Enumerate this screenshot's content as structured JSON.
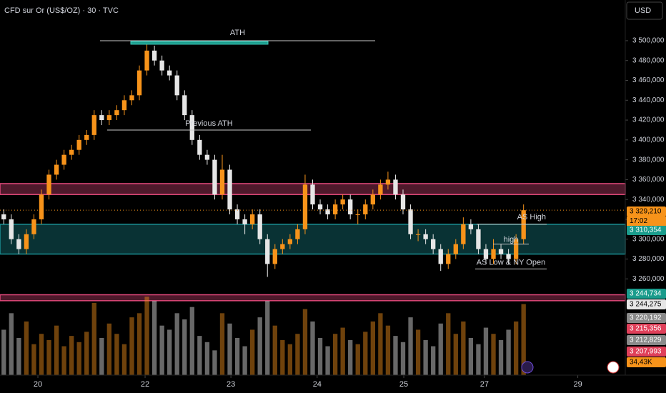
{
  "chart_data": {
    "type": "candlestick",
    "title": "CFD sur Or (US$/OZ) · 30 · TVC",
    "currency": "USD",
    "open": [
      3325,
      3320,
      3300,
      3290,
      3305,
      3320,
      3345,
      3365,
      3375,
      3385,
      3390,
      3400,
      3405,
      3425,
      3420,
      3425,
      3430,
      3440,
      3445,
      3470,
      3490,
      3480,
      3470,
      3465,
      3445,
      3425,
      3400,
      3385,
      3380,
      3345,
      3370,
      3330,
      3320,
      3315,
      3325,
      3300,
      3275,
      3290,
      3295,
      3300,
      3310,
      3355,
      3335,
      3330,
      3325,
      3335,
      3340,
      3325,
      3325,
      3335,
      3345,
      3355,
      3360,
      3345,
      3330,
      3305,
      3305,
      3300,
      3290,
      3275,
      3285,
      3295,
      3315,
      3310,
      3290,
      3280,
      3290,
      3285,
      3280,
      3300
    ],
    "high": [
      3330,
      3325,
      3305,
      3310,
      3325,
      3350,
      3370,
      3380,
      3390,
      3395,
      3405,
      3410,
      3430,
      3430,
      3430,
      3435,
      3445,
      3450,
      3475,
      3500,
      3495,
      3485,
      3475,
      3470,
      3450,
      3430,
      3405,
      3390,
      3385,
      3385,
      3375,
      3335,
      3325,
      3330,
      3330,
      3305,
      3295,
      3300,
      3305,
      3315,
      3365,
      3360,
      3340,
      3335,
      3340,
      3345,
      3345,
      3330,
      3340,
      3350,
      3360,
      3368,
      3365,
      3350,
      3335,
      3310,
      3310,
      3305,
      3295,
      3290,
      3300,
      3322,
      3320,
      3315,
      3295,
      3300,
      3295,
      3290,
      3305,
      3335
    ],
    "low": [
      3315,
      3295,
      3285,
      3285,
      3300,
      3315,
      3340,
      3360,
      3370,
      3380,
      3385,
      3395,
      3400,
      3415,
      3415,
      3420,
      3425,
      3435,
      3440,
      3465,
      3475,
      3465,
      3460,
      3440,
      3420,
      3395,
      3380,
      3375,
      3340,
      3340,
      3325,
      3315,
      3305,
      3310,
      3295,
      3262,
      3270,
      3285,
      3290,
      3295,
      3305,
      3330,
      3325,
      3320,
      3320,
      3330,
      3320,
      3315,
      3320,
      3330,
      3340,
      3350,
      3340,
      3325,
      3300,
      3298,
      3295,
      3285,
      3268,
      3270,
      3280,
      3290,
      3305,
      3285,
      3275,
      3275,
      3280,
      3275,
      3275,
      3295
    ],
    "close": [
      3320,
      3300,
      3290,
      3305,
      3320,
      3345,
      3365,
      3375,
      3385,
      3390,
      3400,
      3405,
      3425,
      3420,
      3425,
      3430,
      3440,
      3445,
      3470,
      3490,
      3480,
      3470,
      3465,
      3445,
      3425,
      3400,
      3385,
      3380,
      3345,
      3370,
      3330,
      3320,
      3315,
      3325,
      3300,
      3275,
      3290,
      3295,
      3300,
      3310,
      3355,
      3335,
      3330,
      3325,
      3335,
      3340,
      3325,
      3325,
      3335,
      3345,
      3355,
      3360,
      3345,
      3330,
      3305,
      3305,
      3300,
      3290,
      3275,
      3285,
      3295,
      3315,
      3310,
      3290,
      3280,
      3290,
      3285,
      3280,
      3300,
      3329.21
    ],
    "volume": [
      22,
      30,
      18,
      26,
      15,
      20,
      17,
      24,
      14,
      19,
      16,
      21,
      35,
      18,
      25,
      20,
      15,
      28,
      30,
      38,
      36,
      24,
      22,
      30,
      27,
      33,
      19,
      16,
      12,
      30,
      25,
      18,
      14,
      22,
      28,
      36,
      24,
      17,
      15,
      20,
      32,
      26,
      18,
      14,
      20,
      23,
      17,
      15,
      21,
      26,
      30,
      24,
      19,
      16,
      28,
      22,
      17,
      14,
      25,
      30,
      20,
      26,
      18,
      15,
      23,
      20,
      17,
      22,
      26,
      34.43
    ],
    "up_color": "#f7931a",
    "down_color": "#e6e6e6",
    "xlim": [
      -0.5,
      82.5
    ],
    "xticks": [
      {
        "value": 4.53,
        "label": "20"
      },
      {
        "value": 18.76,
        "label": "22"
      },
      {
        "value": 30.15,
        "label": "23"
      },
      {
        "value": 41.6,
        "label": "24"
      },
      {
        "value": 53.1,
        "label": "25"
      },
      {
        "value": 63.8,
        "label": "27"
      },
      {
        "value": 76.2,
        "label": "29"
      }
    ],
    "ylim": [
      3163,
      3541
    ],
    "yticks": [
      {
        "value": 3500,
        "label": "3 500,000"
      },
      {
        "value": 3480,
        "label": "3 480,000"
      },
      {
        "value": 3460,
        "label": "3 460,000"
      },
      {
        "value": 3440,
        "label": "3 440,000"
      },
      {
        "value": 3420,
        "label": "3 420,000"
      },
      {
        "value": 3400,
        "label": "3 400,000"
      },
      {
        "value": 3380,
        "label": "3 380,000"
      },
      {
        "value": 3360,
        "label": "3 360,000"
      },
      {
        "value": 3340,
        "label": "3 340,000"
      },
      {
        "value": 3320,
        "label": "3 320,000"
      },
      {
        "value": 3300,
        "label": "3 300,000"
      },
      {
        "value": 3280,
        "label": "3 280,000"
      },
      {
        "value": 3260,
        "label": "3 260,000"
      }
    ],
    "vlim": [
      0,
      45
    ],
    "zones": [
      {
        "low": 3345,
        "high": 3356,
        "color": "#e0487a"
      },
      {
        "low": 3285,
        "high": 3315,
        "color": "#1a8f94"
      },
      {
        "low": 3238,
        "high": 3244,
        "color": "#e0487a"
      }
    ],
    "levels": [
      {
        "label": "ATH",
        "value": 3500
      },
      {
        "label": "Previous ATH",
        "value": 3410
      },
      {
        "label": "AS High",
        "value": 3315
      },
      {
        "label": "high",
        "value": 3295
      },
      {
        "label": "AS Low & NY Open",
        "value": 3270
      }
    ],
    "countdown": "17:02",
    "price_tags": [
      {
        "label": "3 329,210",
        "color": "#f7931a"
      },
      {
        "label": "3 310,354",
        "color": "#1a9c8c"
      },
      {
        "label": "3 244,734",
        "color": "#1a9c8c"
      },
      {
        "label": "3 244,275",
        "color": "#e6e6e6"
      },
      {
        "label": "3 220,192",
        "color": "#8a8a8a"
      },
      {
        "label": "3 215,356",
        "color": "#e0405a"
      },
      {
        "label": "3 212,829",
        "color": "#8a8a8a"
      },
      {
        "label": "3 207,993",
        "color": "#e0405a"
      },
      {
        "label": "34,43K",
        "color": "#f7931a"
      }
    ]
  }
}
